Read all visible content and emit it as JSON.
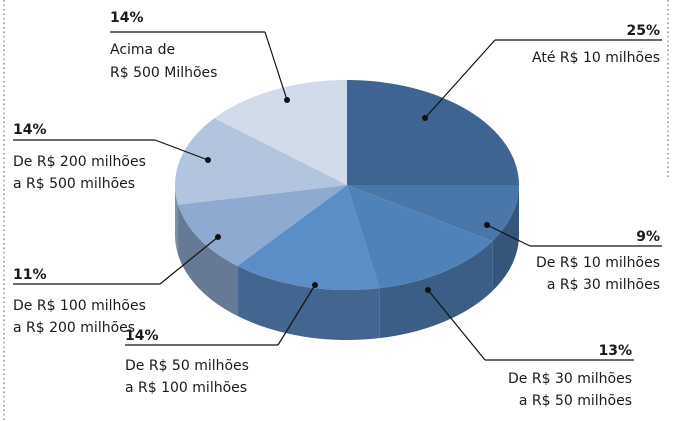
{
  "chart_data": {
    "type": "pie",
    "categories": [
      [
        "Até R$ 10 milhões"
      ],
      [
        "De R$ 10 milhões",
        "a R$ 30 milhões"
      ],
      [
        "De R$ 30 milhões",
        "a R$ 50 milhões"
      ],
      [
        "De R$ 50 milhões",
        "a R$ 100 milhões"
      ],
      [
        "De R$ 100 milhões",
        "a R$ 200 milhões"
      ],
      [
        "De R$ 200 milhões",
        "a R$ 500 milhões"
      ],
      [
        "Acima de",
        "R$ 500 Milhões"
      ]
    ],
    "values": [
      25,
      9,
      13,
      14,
      11,
      14,
      14
    ],
    "value_labels": [
      "25%",
      "9%",
      "13%",
      "14%",
      "11%",
      "14%",
      "14%"
    ],
    "colors": [
      "#3e6592",
      "#4a77a9",
      "#5082ba",
      "#5b8dc6",
      "#8eaad0",
      "#b3c4de",
      "#d2dbea"
    ]
  }
}
